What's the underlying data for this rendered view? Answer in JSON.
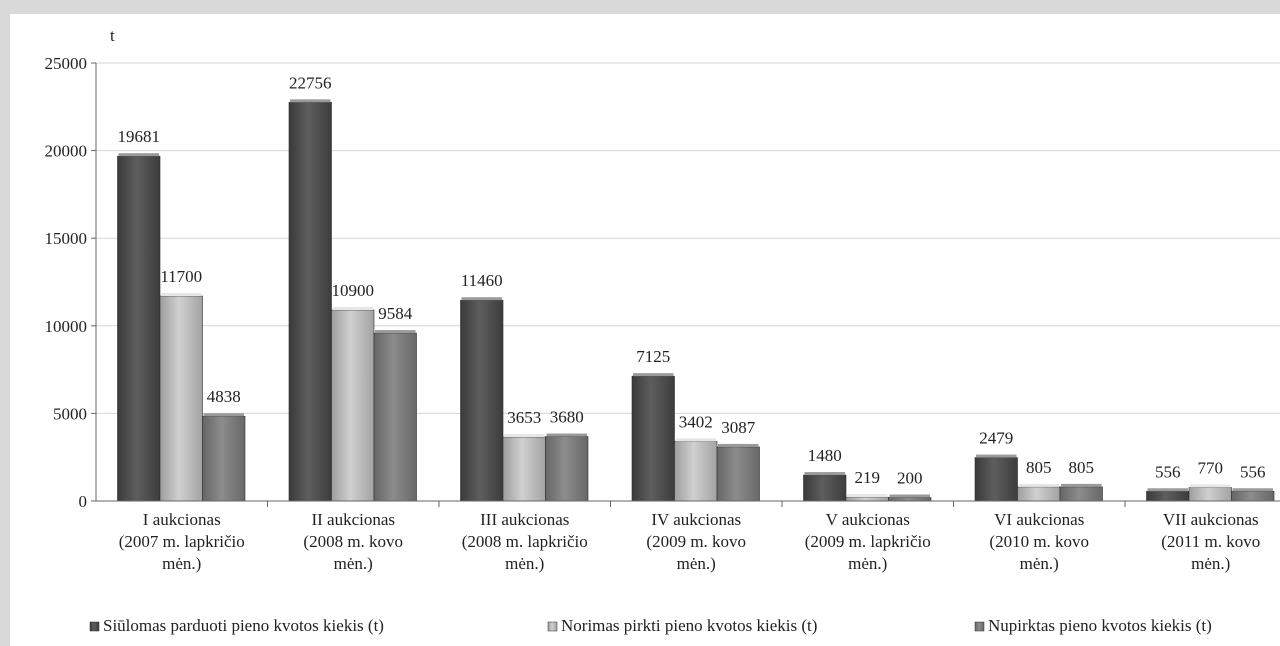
{
  "chart_data": {
    "type": "bar",
    "title": "",
    "ylabel": "t",
    "xlabel": "",
    "ylim": [
      0,
      25000
    ],
    "yticks": [
      0,
      5000,
      10000,
      15000,
      20000,
      25000
    ],
    "grid": true,
    "legend_position": "bottom",
    "categories": [
      [
        "I aukcionas",
        "(2007 m. lapkričio",
        "mėn.)"
      ],
      [
        "II aukcionas",
        "(2008 m. kovo",
        "mėn.)"
      ],
      [
        "III aukcionas",
        "(2008 m. lapkričio",
        "mėn.)"
      ],
      [
        "IV aukcionas",
        "(2009 m. kovo",
        "mėn.)"
      ],
      [
        "V aukcionas",
        "(2009 m. lapkričio",
        "mėn.)"
      ],
      [
        "VI aukcionas",
        "(2010 m. kovo",
        "mėn.)"
      ],
      [
        "VII aukcionas",
        "(2011 m. kovo",
        "mėn.)"
      ]
    ],
    "series": [
      {
        "name": "Siūlomas parduoti pieno kvotos kiekis (t)",
        "color": "#4d4d4d",
        "values": [
          19681,
          22756,
          11460,
          7125,
          1480,
          2479,
          556
        ]
      },
      {
        "name": "Norimas pirkti pieno kvotos kiekis (t)",
        "color": "#b3b3b3",
        "values": [
          11700,
          10900,
          3653,
          3402,
          219,
          805,
          770
        ]
      },
      {
        "name": "Nupirktas pieno kvotos kiekis (t)",
        "color": "#7a7a7a",
        "values": [
          4838,
          9584,
          3680,
          3087,
          200,
          805,
          556
        ]
      }
    ]
  }
}
